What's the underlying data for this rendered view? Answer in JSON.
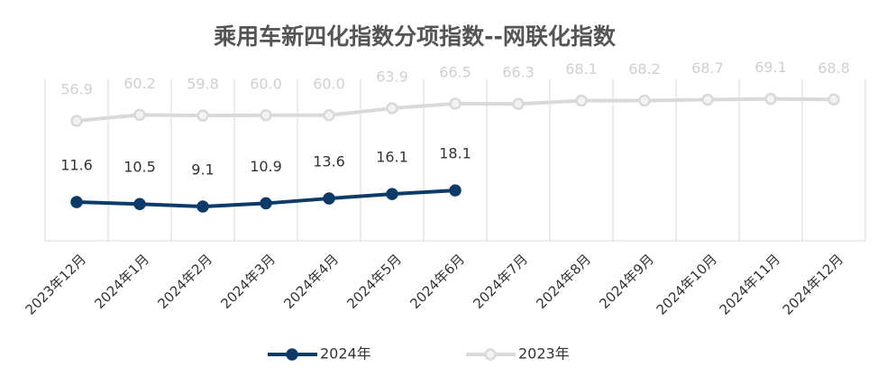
{
  "chart_data": {
    "type": "line",
    "title": "乘用车新四化指数分项指数--网联化指数",
    "categories": [
      "2023年12月",
      "2024年1月",
      "2024年2月",
      "2024年3月",
      "2024年4月",
      "2024年5月",
      "2024年6月",
      "2024年7月",
      "2024年8月",
      "2024年9月",
      "2024年10月",
      "2024年11月",
      "2024年12月"
    ],
    "series": [
      {
        "name": "2024年",
        "color": "#0d3b69",
        "values": [
          11.6,
          10.5,
          9.1,
          10.9,
          13.6,
          16.1,
          18.1,
          null,
          null,
          null,
          null,
          null,
          null
        ]
      },
      {
        "name": "2023年",
        "color": "#d9d9d9",
        "values": [
          56.9,
          60.2,
          59.8,
          60.0,
          60.0,
          63.9,
          66.5,
          66.3,
          68.1,
          68.2,
          68.7,
          69.1,
          68.8
        ],
        "value_labels": [
          "56.9",
          "60.2",
          "59.8",
          "60.0",
          "60.0",
          "63.9",
          "66.5",
          "66.3",
          "68.1",
          "68.2",
          "68.7",
          "69.1",
          "68.8"
        ]
      }
    ],
    "ylim": [
      -10,
      80
    ],
    "grid": true,
    "legend": "bottom"
  }
}
